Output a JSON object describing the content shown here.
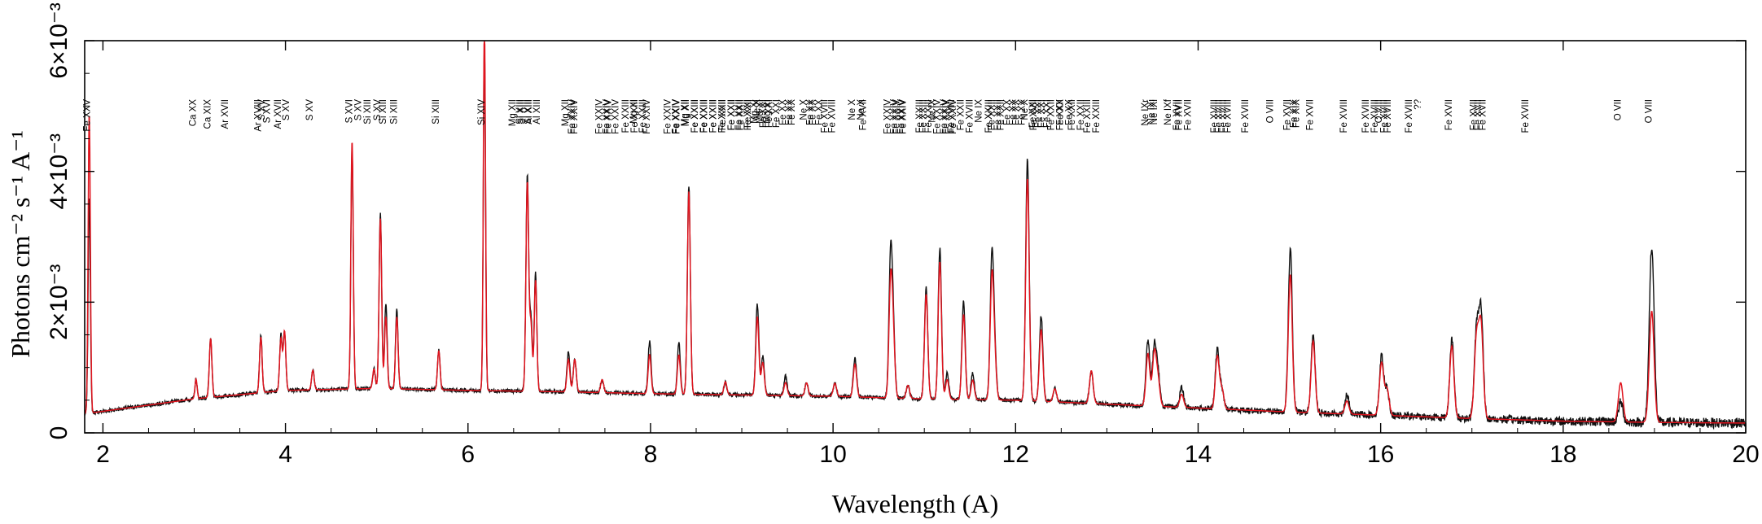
{
  "chart_data": {
    "type": "line",
    "title": "",
    "xlabel": "Wavelength (A)",
    "ylabel": "Photons cm⁻² s⁻¹ A⁻¹",
    "xlim": [
      1.8,
      20.0
    ],
    "ylim": [
      0,
      0.006
    ],
    "x_ticks": [
      {
        "value": 2,
        "label": "2"
      },
      {
        "value": 4,
        "label": "4"
      },
      {
        "value": 6,
        "label": "6"
      },
      {
        "value": 8,
        "label": "8"
      },
      {
        "value": 10,
        "label": "10"
      },
      {
        "value": 12,
        "label": "12"
      },
      {
        "value": 14,
        "label": "14"
      },
      {
        "value": 16,
        "label": "16"
      },
      {
        "value": 18,
        "label": "18"
      },
      {
        "value": 20,
        "label": "20"
      }
    ],
    "y_ticks": [
      {
        "value": 0,
        "label": "0"
      },
      {
        "value": 0.002,
        "label": "2×10⁻³"
      },
      {
        "value": 0.004,
        "label": "4×10⁻³"
      },
      {
        "value": 0.006,
        "label": "6×10⁻³"
      }
    ],
    "grid": false,
    "colors": {
      "data": "#111111",
      "model": "#e0141e"
    },
    "continuum": [
      [
        1.8,
        0.00029
      ],
      [
        2.0,
        0.00033
      ],
      [
        3.0,
        0.00052
      ],
      [
        4.0,
        0.00065
      ],
      [
        5.0,
        0.00068
      ],
      [
        6.0,
        0.00065
      ],
      [
        7.0,
        0.00063
      ],
      [
        8.0,
        0.0006
      ],
      [
        9.0,
        0.00058
      ],
      [
        10.0,
        0.00056
      ],
      [
        11.0,
        0.00052
      ],
      [
        12.0,
        0.0005
      ],
      [
        13.0,
        0.00044
      ],
      [
        14.0,
        0.00038
      ],
      [
        15.0,
        0.00032
      ],
      [
        16.0,
        0.00027
      ],
      [
        17.0,
        0.00022
      ],
      [
        18.0,
        0.00018
      ],
      [
        19.0,
        0.00016
      ],
      [
        20.0,
        0.00015
      ]
    ],
    "emission_lines": [
      {
        "x": 1.85,
        "data": 0.0033,
        "model": 0.0046,
        "w": 0.012
      },
      {
        "x": 3.02,
        "data": 0.0003,
        "model": 0.0003,
        "w": 0.012
      },
      {
        "x": 3.18,
        "data": 0.0009,
        "model": 0.0009,
        "w": 0.014
      },
      {
        "x": 3.73,
        "data": 0.0009,
        "model": 0.00085,
        "w": 0.014
      },
      {
        "x": 3.95,
        "data": 0.00085,
        "model": 0.0008,
        "w": 0.014
      },
      {
        "x": 3.99,
        "data": 0.0009,
        "model": 0.0009,
        "w": 0.014
      },
      {
        "x": 4.3,
        "data": 0.0003,
        "model": 0.0003,
        "w": 0.014
      },
      {
        "x": 4.73,
        "data": 0.0037,
        "model": 0.0038,
        "w": 0.013
      },
      {
        "x": 4.97,
        "data": 0.0003,
        "model": 0.0003,
        "w": 0.014
      },
      {
        "x": 5.04,
        "data": 0.0027,
        "model": 0.0026,
        "w": 0.014
      },
      {
        "x": 5.1,
        "data": 0.0013,
        "model": 0.0011,
        "w": 0.014
      },
      {
        "x": 5.22,
        "data": 0.0012,
        "model": 0.0011,
        "w": 0.014
      },
      {
        "x": 5.68,
        "data": 0.0006,
        "model": 0.0006,
        "w": 0.014
      },
      {
        "x": 6.18,
        "data": 0.0053,
        "model": 0.0056,
        "w": 0.012
      },
      {
        "x": 6.65,
        "data": 0.0033,
        "model": 0.0032,
        "w": 0.015
      },
      {
        "x": 6.69,
        "data": 0.0011,
        "model": 0.001,
        "w": 0.014
      },
      {
        "x": 6.74,
        "data": 0.0018,
        "model": 0.0017,
        "w": 0.014
      },
      {
        "x": 7.1,
        "data": 0.0006,
        "model": 0.0005,
        "w": 0.016
      },
      {
        "x": 7.17,
        "data": 0.0005,
        "model": 0.0005,
        "w": 0.016
      },
      {
        "x": 7.47,
        "data": 0.0002,
        "model": 0.0002,
        "w": 0.016
      },
      {
        "x": 7.99,
        "data": 0.0008,
        "model": 0.0006,
        "w": 0.016
      },
      {
        "x": 8.31,
        "data": 0.0008,
        "model": 0.0006,
        "w": 0.016
      },
      {
        "x": 8.42,
        "data": 0.0032,
        "model": 0.0031,
        "w": 0.016
      },
      {
        "x": 8.82,
        "data": 0.0002,
        "model": 0.0002,
        "w": 0.016
      },
      {
        "x": 9.17,
        "data": 0.0014,
        "model": 0.0012,
        "w": 0.017
      },
      {
        "x": 9.23,
        "data": 0.0006,
        "model": 0.0005,
        "w": 0.017
      },
      {
        "x": 9.48,
        "data": 0.0003,
        "model": 0.0002,
        "w": 0.017
      },
      {
        "x": 9.71,
        "data": 0.0002,
        "model": 0.0002,
        "w": 0.017
      },
      {
        "x": 10.02,
        "data": 0.0002,
        "model": 0.0002,
        "w": 0.018
      },
      {
        "x": 10.24,
        "data": 0.0006,
        "model": 0.0005,
        "w": 0.018
      },
      {
        "x": 10.63,
        "data": 0.0021,
        "model": 0.0017,
        "w": 0.018
      },
      {
        "x": 10.66,
        "data": 0.001,
        "model": 0.0009,
        "w": 0.018
      },
      {
        "x": 10.82,
        "data": 0.0002,
        "model": 0.0002,
        "w": 0.018
      },
      {
        "x": 11.02,
        "data": 0.0017,
        "model": 0.0016,
        "w": 0.018
      },
      {
        "x": 11.17,
        "data": 0.0023,
        "model": 0.0021,
        "w": 0.018
      },
      {
        "x": 11.25,
        "data": 0.0004,
        "model": 0.0003,
        "w": 0.018
      },
      {
        "x": 11.43,
        "data": 0.0015,
        "model": 0.0013,
        "w": 0.018
      },
      {
        "x": 11.53,
        "data": 0.0004,
        "model": 0.0003,
        "w": 0.018
      },
      {
        "x": 11.74,
        "data": 0.0021,
        "model": 0.0018,
        "w": 0.019
      },
      {
        "x": 11.77,
        "data": 0.0007,
        "model": 0.0006,
        "w": 0.019
      },
      {
        "x": 12.13,
        "data": 0.0037,
        "model": 0.0034,
        "w": 0.019
      },
      {
        "x": 12.28,
        "data": 0.0013,
        "model": 0.0011,
        "w": 0.019
      },
      {
        "x": 12.43,
        "data": 0.0002,
        "model": 0.0002,
        "w": 0.019
      },
      {
        "x": 12.83,
        "data": 0.0005,
        "model": 0.0005,
        "w": 0.02
      },
      {
        "x": 13.45,
        "data": 0.001,
        "model": 0.0008,
        "w": 0.021
      },
      {
        "x": 13.52,
        "data": 0.0009,
        "model": 0.0008,
        "w": 0.021
      },
      {
        "x": 13.56,
        "data": 0.0005,
        "model": 0.0004,
        "w": 0.021
      },
      {
        "x": 13.82,
        "data": 0.0003,
        "model": 0.0002,
        "w": 0.021
      },
      {
        "x": 14.21,
        "data": 0.0009,
        "model": 0.0008,
        "w": 0.021
      },
      {
        "x": 14.26,
        "data": 0.0003,
        "model": 0.0003,
        "w": 0.021
      },
      {
        "x": 15.01,
        "data": 0.0025,
        "model": 0.0021,
        "w": 0.022
      },
      {
        "x": 15.26,
        "data": 0.0012,
        "model": 0.0011,
        "w": 0.022
      },
      {
        "x": 15.63,
        "data": 0.0003,
        "model": 0.0002,
        "w": 0.022
      },
      {
        "x": 16.01,
        "data": 0.0009,
        "model": 0.0008,
        "w": 0.023
      },
      {
        "x": 16.07,
        "data": 0.0004,
        "model": 0.0004,
        "w": 0.023
      },
      {
        "x": 16.78,
        "data": 0.0012,
        "model": 0.0011,
        "w": 0.023
      },
      {
        "x": 17.05,
        "data": 0.0013,
        "model": 0.0012,
        "w": 0.024
      },
      {
        "x": 17.1,
        "data": 0.0016,
        "model": 0.0014,
        "w": 0.024
      },
      {
        "x": 18.63,
        "data": 0.0003,
        "model": 0.0006,
        "w": 0.025
      },
      {
        "x": 18.97,
        "data": 0.0027,
        "model": 0.0017,
        "w": 0.026
      }
    ],
    "annotations": [
      {
        "x": 1.86,
        "lines": [
          "Fe XXV"
        ]
      },
      {
        "x": 3.02,
        "lines": [
          "Ca XX"
        ]
      },
      {
        "x": 3.18,
        "lines": [
          "Ca XIX"
        ]
      },
      {
        "x": 3.37,
        "lines": [
          "Ar XVII"
        ]
      },
      {
        "x": 3.73,
        "lines": [
          "Ar XVIII",
          "S XVI"
        ]
      },
      {
        "x": 3.77,
        "lines": [
          "S XV"
        ]
      },
      {
        "x": 3.95,
        "lines": [
          "Ar XVII"
        ]
      },
      {
        "x": 4.04,
        "lines": [
          "S XV"
        ]
      },
      {
        "x": 4.3,
        "lines": [
          "S XV"
        ]
      },
      {
        "x": 4.73,
        "lines": [
          "S XVI"
        ]
      },
      {
        "x": 4.83,
        "lines": [
          "S XV"
        ]
      },
      {
        "x": 4.93,
        "lines": [
          "Si XIII"
        ]
      },
      {
        "x": 5.04,
        "lines": [
          "S XV"
        ]
      },
      {
        "x": 5.1,
        "lines": [
          "Si XIII"
        ]
      },
      {
        "x": 5.22,
        "lines": [
          "Si XIII"
        ]
      },
      {
        "x": 5.68,
        "lines": [
          "Si XIII"
        ]
      },
      {
        "x": 6.18,
        "lines": [
          "Si XIV"
        ]
      },
      {
        "x": 6.52,
        "lines": [
          "Mg XII",
          "Si XIII"
        ]
      },
      {
        "x": 6.6,
        "lines": [
          "Si XIII",
          "Al XIII"
        ]
      },
      {
        "x": 6.69,
        "lines": [
          "Si XIII",
          "Al XIII"
        ]
      },
      {
        "x": 7.1,
        "lines": [
          "Mg XII",
          "Fe XXIV"
        ]
      },
      {
        "x": 7.17,
        "lines": [
          "Fe XXIV"
        ]
      },
      {
        "x": 7.47,
        "lines": [
          "Fe XXIV",
          "Fe XXIV"
        ]
      },
      {
        "x": 7.55,
        "lines": [
          "Fe XXIV",
          "Fe XXIV"
        ]
      },
      {
        "x": 7.76,
        "lines": [
          "Fe XXIII",
          "Fe XXIII"
        ]
      },
      {
        "x": 7.85,
        "lines": [
          "Mg XI",
          "Fe XXIII"
        ]
      },
      {
        "x": 7.99,
        "lines": [
          "Fe XXIV"
        ]
      },
      {
        "x": 8.22,
        "lines": [
          "Fe XXIV",
          "Fe XXIV"
        ]
      },
      {
        "x": 8.31,
        "lines": [
          "Fe XXIV",
          "Mg XII"
        ]
      },
      {
        "x": 8.42,
        "lines": [
          "Mg XII",
          "Fe XXIII"
        ]
      },
      {
        "x": 8.52,
        "lines": [
          "Fe XXIII",
          "Fe XXIII"
        ]
      },
      {
        "x": 8.62,
        "lines": [
          "Fe XXIII",
          "Fe XXIII"
        ]
      },
      {
        "x": 8.72,
        "lines": [
          "Fe XXIII",
          "Fe XXIII"
        ]
      },
      {
        "x": 8.82,
        "lines": [
          "Fe XXII",
          "Fe XXII"
        ]
      },
      {
        "x": 8.92,
        "lines": [
          "Fe XXII",
          "Fe XXII"
        ]
      },
      {
        "x": 9.0,
        "lines": [
          "Fe XXII",
          "Fe XXII"
        ]
      },
      {
        "x": 9.1,
        "lines": [
          "Fe XXI",
          "Ne X"
        ]
      },
      {
        "x": 9.17,
        "lines": [
          "Mg XI",
          "Fe XXI"
        ]
      },
      {
        "x": 9.23,
        "lines": [
          "Mg XI",
          "Fe XXI"
        ]
      },
      {
        "x": 9.31,
        "lines": [
          "Mg XI",
          "Fe XXI"
        ]
      },
      {
        "x": 9.48,
        "lines": [
          "Fe XX",
          "Fe XX"
        ]
      },
      {
        "x": 9.55,
        "lines": [
          "Fe XX"
        ]
      },
      {
        "x": 9.71,
        "lines": [
          "Ne X",
          "Fe XX"
        ]
      },
      {
        "x": 9.78,
        "lines": [
          "Fe XX",
          "Fe XX"
        ]
      },
      {
        "x": 9.94,
        "lines": [
          "Fe XVIII"
        ]
      },
      {
        "x": 10.02,
        "lines": [
          "Fe XVIII"
        ]
      },
      {
        "x": 10.24,
        "lines": [
          "Ne X",
          "Ne X"
        ]
      },
      {
        "x": 10.36,
        "lines": [
          "Fe XVII"
        ]
      },
      {
        "x": 10.63,
        "lines": [
          "Fe XXIV",
          "Fe XXIV"
        ]
      },
      {
        "x": 10.7,
        "lines": [
          "Fe XXIV",
          "Fe XXIV"
        ]
      },
      {
        "x": 10.78,
        "lines": [
          "Fe XXIV"
        ]
      },
      {
        "x": 10.98,
        "lines": [
          "Fe XXIII",
          "Fe XXIII"
        ]
      },
      {
        "x": 11.02,
        "lines": [
          "Fe XXIII",
          "Ne IX"
        ]
      },
      {
        "x": 11.17,
        "lines": [
          "Fe XXIV",
          "Fe XXIV"
        ]
      },
      {
        "x": 11.25,
        "lines": [
          "Fe XXIV",
          "Fe XXIV"
        ]
      },
      {
        "x": 11.33,
        "lines": [
          "Fe XVIII"
        ]
      },
      {
        "x": 11.43,
        "lines": [
          "Fe XXII"
        ]
      },
      {
        "x": 11.53,
        "lines": [
          "Fe XVIII",
          "Ne IX"
        ]
      },
      {
        "x": 11.74,
        "lines": [
          "Fe XXIII",
          "Fe XXII"
        ]
      },
      {
        "x": 11.77,
        "lines": [
          "Fe XXII",
          "Fe XXII"
        ]
      },
      {
        "x": 11.94,
        "lines": [
          "Fe XX",
          "Fe XX"
        ]
      },
      {
        "x": 12.0,
        "lines": [
          "Fe XX",
          "Fe XX"
        ]
      },
      {
        "x": 12.13,
        "lines": [
          "Ne X",
          "Fe XVII"
        ]
      },
      {
        "x": 12.22,
        "lines": [
          "Fe XXI",
          "Fe XXI"
        ]
      },
      {
        "x": 12.28,
        "lines": [
          "Fe XXI",
          "Fe XXI"
        ]
      },
      {
        "x": 12.42,
        "lines": [
          "Fe XXII",
          "Fe XXII"
        ]
      },
      {
        "x": 12.52,
        "lines": [
          "Fe XX",
          "Fe XX"
        ]
      },
      {
        "x": 12.65,
        "lines": [
          "Fe XXII",
          "Fe XXII"
        ]
      },
      {
        "x": 12.82,
        "lines": [
          "Fe XXIII",
          "Fe XXIII"
        ]
      },
      {
        "x": 13.45,
        "lines": [
          "Ne IXr",
          "Ne IXi"
        ]
      },
      {
        "x": 13.52,
        "lines": [
          "Ne IXi"
        ]
      },
      {
        "x": 13.7,
        "lines": [
          "Ne IXf",
          "Fe XVII"
        ]
      },
      {
        "x": 13.82,
        "lines": [
          "Fe XVII",
          "Fe XVII"
        ]
      },
      {
        "x": 14.21,
        "lines": [
          "Fe XVIII",
          "Fe XVIII"
        ]
      },
      {
        "x": 14.26,
        "lines": [
          "Fe XVIII",
          "Fe XVIII"
        ]
      },
      {
        "x": 14.55,
        "lines": [
          "Fe XVIII"
        ]
      },
      {
        "x": 14.82,
        "lines": [
          "O VIII"
        ]
      },
      {
        "x": 15.01,
        "lines": [
          "Fe XVII",
          "Fe XIX"
        ]
      },
      {
        "x": 15.08,
        "lines": [
          "Fe XIX"
        ]
      },
      {
        "x": 15.26,
        "lines": [
          "Fe XVII"
        ]
      },
      {
        "x": 15.63,
        "lines": [
          "Fe XVIII"
        ]
      },
      {
        "x": 15.87,
        "lines": [
          "Fe XVIII",
          "Fe XVIII"
        ]
      },
      {
        "x": 16.01,
        "lines": [
          "O VIII",
          "Fe XVIII"
        ]
      },
      {
        "x": 16.07,
        "lines": [
          "Fe XVIII"
        ]
      },
      {
        "x": 16.34,
        "lines": [
          "Fe XVIII",
          "??"
        ]
      },
      {
        "x": 16.78,
        "lines": [
          "Fe XVII"
        ]
      },
      {
        "x": 17.05,
        "lines": [
          "Fe XVII",
          "Fe XVII"
        ]
      },
      {
        "x": 17.1,
        "lines": [
          "Fe XVII"
        ]
      },
      {
        "x": 17.62,
        "lines": [
          "Fe XVIII"
        ]
      },
      {
        "x": 18.63,
        "lines": [
          "O VII"
        ]
      },
      {
        "x": 18.97,
        "lines": [
          "O VIII"
        ]
      }
    ]
  }
}
